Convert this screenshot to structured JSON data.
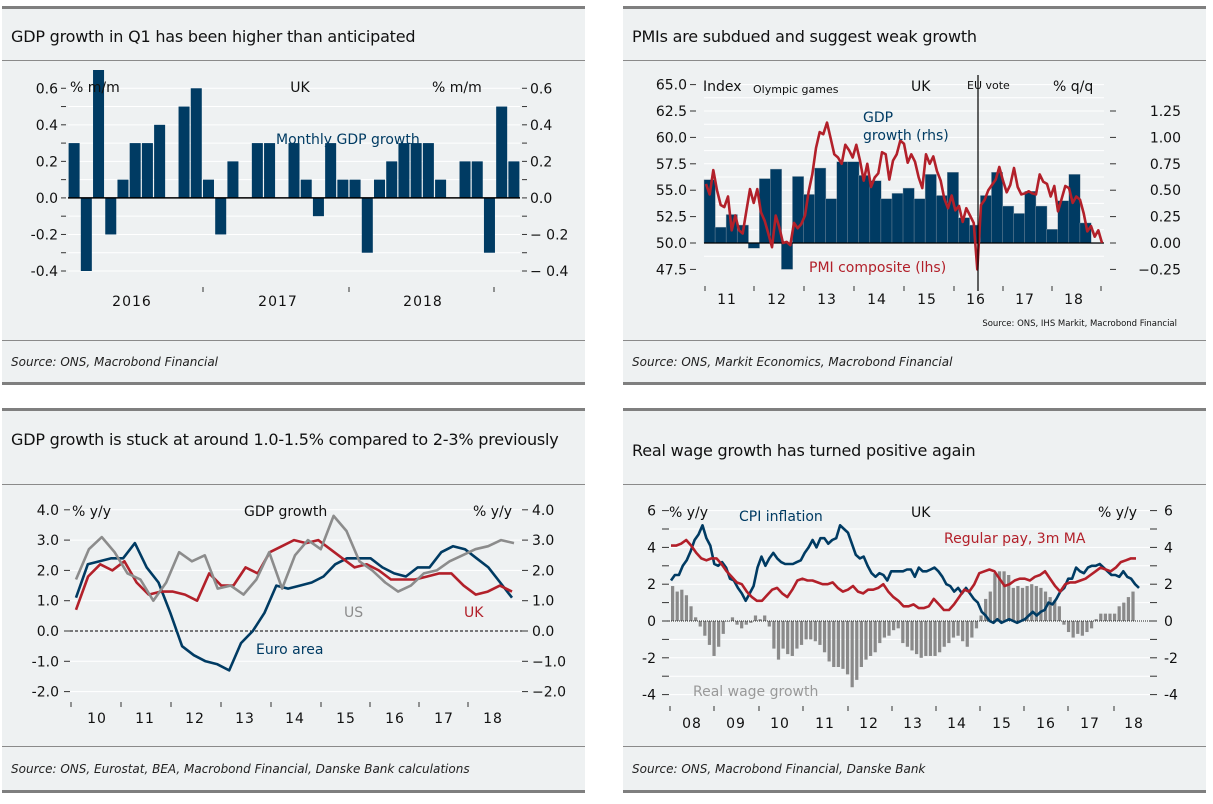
{
  "colors": {
    "navy": "#003b63",
    "red": "#b2202a",
    "gray": "#8c8c8c",
    "grid": "#ffffff"
  },
  "panels": [
    {
      "title": "GDP growth in Q1 has been higher than anticipated",
      "source": "Source: ONS, Macrobond Financial"
    },
    {
      "title": "PMIs are subdued and suggest weak growth",
      "source": "Source: ONS, Markit Economics, Macrobond Financial"
    },
    {
      "title": "GDP growth is stuck at around 1.0-1.5% compared to 2-3% previously",
      "source": "Source: ONS, Eurostat, BEA, Macrobond Financial, Danske Bank calculations"
    },
    {
      "title": "Real wage growth has turned positive again",
      "source": "Source: ONS, Macrobond Financial, Danske Bank"
    }
  ],
  "chart_data": [
    {
      "type": "bar",
      "title": "UK",
      "ylabel_left": "% m/m",
      "ylabel_right": "% m/m",
      "series_label": "Monthly GDP growth",
      "ylim": [
        -0.4,
        0.7
      ],
      "yticks": [
        -0.4,
        -0.2,
        0.0,
        0.2,
        0.4,
        0.6
      ],
      "ytick_labels": [
        "-0.4",
        "-0.2",
        "0.0",
        "0.2",
        "0.4",
        "0.6"
      ],
      "xtick_labels": [
        "2016",
        "2017",
        "2018"
      ],
      "values": [
        0.3,
        -0.4,
        0.7,
        -0.2,
        0.1,
        0.3,
        0.3,
        0.4,
        0.0,
        0.5,
        0.6,
        0.1,
        -0.2,
        0.2,
        0.0,
        0.3,
        0.3,
        0.0,
        0.3,
        0.1,
        -0.1,
        0.3,
        0.1,
        0.1,
        -0.3,
        0.1,
        0.2,
        0.3,
        0.3,
        0.3,
        0.1,
        0.0,
        0.2,
        0.2,
        -0.3,
        0.5,
        0.2
      ],
      "grid": true
    },
    {
      "type": "bar+line",
      "title": "UK",
      "ylabel_left": "Index",
      "ylabel_right": "% q/q",
      "left_ylim": [
        47.5,
        65.0
      ],
      "left_yticks": [
        "47.5",
        "50.0",
        "52.5",
        "55.0",
        "57.5",
        "60.0",
        "62.5",
        "65.0"
      ],
      "right_ylim": [
        -0.25,
        1.25
      ],
      "right_yticks": [
        "-0.25",
        "0.00",
        "0.25",
        "0.50",
        "0.75",
        "1.00",
        "1.25"
      ],
      "xtick_labels": [
        "11",
        "12",
        "13",
        "14",
        "15",
        "16",
        "17",
        "18"
      ],
      "annotations": [
        "Olympic games",
        "EU vote",
        "Source: ONS, IHS Markit, Macrobond Financial"
      ],
      "series": [
        {
          "name": "GDP growth (rhs)",
          "type": "bar",
          "axis": "right",
          "values": [
            0.6,
            0.15,
            0.27,
            0.17,
            -0.05,
            0.61,
            0.7,
            -0.25,
            0.63,
            0.46,
            0.71,
            0.42,
            0.77,
            0.77,
            0.64,
            0.59,
            0.42,
            0.47,
            0.52,
            0.42,
            0.65,
            0.45,
            0.67,
            0.24,
            0.17,
            0.45,
            0.67,
            0.35,
            0.28,
            0.49,
            0.35,
            0.13,
            0.4,
            0.65,
            0.19,
            0.0
          ]
        },
        {
          "name": "PMI composite (lhs)",
          "type": "line",
          "axis": "left",
          "values": [
            55.6,
            54.6,
            56.9,
            55.0,
            53.6,
            53.4,
            54.4,
            51.2,
            52.6,
            51.2,
            50.9,
            53.0,
            55.1,
            53.8,
            55.1,
            52.9,
            52.1,
            50.9,
            49.6,
            52.6,
            51.5,
            50.0,
            50.1,
            49.8,
            51.9,
            51.4,
            51.8,
            52.6,
            54.9,
            56.5,
            59.0,
            60.5,
            60.3,
            61.4,
            59.9,
            58.4,
            58.1,
            57.5,
            59.3,
            58.8,
            58.1,
            59.3,
            57.8,
            55.9,
            57.5,
            55.3,
            56.2,
            56.6,
            58.6,
            58.4,
            56.0,
            57.8,
            58.4,
            59.7,
            59.4,
            57.6,
            58.4,
            57.7,
            56.2,
            55.2,
            58.4,
            57.5,
            58.2,
            56.8,
            55.9,
            54.2,
            53.3,
            54.5,
            53.1,
            53.5,
            52.0,
            53.3,
            52.6,
            51.9,
            47.5,
            53.6,
            54.1,
            55.0,
            55.5,
            56.0,
            57.2,
            55.9,
            54.8,
            55.5,
            57.1,
            55.3,
            54.6,
            54.7,
            54.9,
            54.7,
            54.6,
            56.5,
            55.8,
            55.6,
            54.4,
            55.4,
            53.0,
            54.2,
            55.4,
            55.2,
            53.8,
            54.4,
            54.1,
            52.8,
            51.1,
            51.6,
            50.6,
            51.2,
            50.0
          ]
        }
      ],
      "grid": true
    },
    {
      "type": "line",
      "title": "GDP growth",
      "ylabel_left": "% y/y",
      "ylabel_right": "% y/y",
      "ylim": [
        -2.0,
        4.0
      ],
      "yticks": [
        "-2.0",
        "-1.0",
        "0.0",
        "1.0",
        "2.0",
        "3.0",
        "4.0"
      ],
      "xtick_labels": [
        "10",
        "11",
        "12",
        "13",
        "14",
        "15",
        "16",
        "17",
        "18"
      ],
      "series": [
        {
          "name": "Euro area",
          "color": "navy",
          "values": [
            1.1,
            2.2,
            2.3,
            2.4,
            2.4,
            2.9,
            2.1,
            1.6,
            0.6,
            -0.5,
            -0.8,
            -1.0,
            -1.1,
            -1.3,
            -0.4,
            0.0,
            0.6,
            1.5,
            1.4,
            1.5,
            1.6,
            1.8,
            2.2,
            2.4,
            2.4,
            2.4,
            2.1,
            1.9,
            1.8,
            2.1,
            2.1,
            2.6,
            2.8,
            2.7,
            2.4,
            2.1,
            1.6,
            1.1
          ]
        },
        {
          "name": "UK",
          "color": "red",
          "values": [
            0.7,
            1.8,
            2.2,
            2.0,
            2.3,
            1.6,
            1.2,
            1.3,
            1.3,
            1.2,
            1.0,
            1.9,
            1.5,
            1.5,
            2.1,
            1.9,
            2.6,
            2.8,
            3.0,
            2.9,
            3.0,
            2.7,
            2.4,
            2.1,
            2.2,
            2.0,
            1.7,
            1.7,
            1.7,
            1.8,
            1.9,
            1.9,
            1.5,
            1.2,
            1.3,
            1.5,
            1.3
          ]
        },
        {
          "name": "US",
          "color": "gray",
          "values": [
            1.7,
            2.7,
            3.1,
            2.6,
            1.9,
            1.7,
            1.0,
            1.6,
            2.6,
            2.3,
            2.5,
            1.4,
            1.5,
            1.2,
            1.7,
            2.6,
            1.4,
            2.5,
            3.0,
            2.7,
            3.8,
            3.3,
            2.3,
            2.0,
            1.6,
            1.3,
            1.5,
            1.9,
            2.0,
            2.3,
            2.5,
            2.7,
            2.8,
            3.0,
            2.9
          ]
        }
      ],
      "grid": true
    },
    {
      "type": "bar+line",
      "title": "UK",
      "ylabel_left": "% y/y",
      "ylabel_right": "% y/y",
      "ylim": [
        -4,
        6
      ],
      "yticks": [
        "-4",
        "-2",
        "0",
        "2",
        "4",
        "6"
      ],
      "xtick_labels": [
        "08",
        "09",
        "10",
        "11",
        "12",
        "13",
        "14",
        "15",
        "16",
        "17",
        "18"
      ],
      "series": [
        {
          "name": "CPI inflation",
          "type": "line",
          "color": "navy",
          "values": [
            2.2,
            2.5,
            2.5,
            3.0,
            3.3,
            3.8,
            4.4,
            4.7,
            5.2,
            4.5,
            4.1,
            3.1,
            3.0,
            3.2,
            2.9,
            2.3,
            2.2,
            1.8,
            1.5,
            1.1,
            1.5,
            1.9,
            2.9,
            3.5,
            3.0,
            3.4,
            3.7,
            3.4,
            3.2,
            3.1,
            3.1,
            3.1,
            3.2,
            3.3,
            3.7,
            4.0,
            4.4,
            4.0,
            4.5,
            4.5,
            4.2,
            4.4,
            4.5,
            5.2,
            5.0,
            4.8,
            4.2,
            3.6,
            3.4,
            3.5,
            3.0,
            2.6,
            2.4,
            2.6,
            2.5,
            2.2,
            2.7,
            2.7,
            2.7,
            2.7,
            2.8,
            2.8,
            2.4,
            2.9,
            2.7,
            2.7,
            2.8,
            2.9,
            2.7,
            2.4,
            2.0,
            1.9,
            1.6,
            1.8,
            1.5,
            1.8,
            1.5,
            1.2,
            1.0,
            0.5,
            0.3,
            0.0,
            -0.1,
            0.1,
            -0.1,
            0.0,
            0.1,
            0.0,
            -0.1,
            0.0,
            0.1,
            0.3,
            0.5,
            0.3,
            0.5,
            0.6,
            1.0,
            0.9,
            1.2,
            1.6,
            1.8,
            2.3,
            2.3,
            2.9,
            2.7,
            2.6,
            2.9,
            3.0,
            3.0,
            3.1,
            2.9,
            2.7,
            2.5,
            2.5,
            2.4,
            2.7,
            2.4,
            2.3,
            2.0,
            1.8
          ]
        },
        {
          "name": "Regular pay, 3m MA",
          "type": "line",
          "color": "red",
          "values": [
            4.1,
            4.1,
            4.2,
            4.4,
            4.1,
            3.7,
            3.4,
            3.3,
            3.4,
            3.4,
            3.1,
            2.7,
            2.4,
            2.1,
            2.0,
            1.6,
            1.3,
            1.1,
            1.1,
            1.4,
            1.7,
            1.8,
            1.5,
            1.3,
            1.7,
            2.2,
            2.3,
            2.2,
            2.2,
            2.1,
            2.0,
            2.0,
            2.1,
            1.8,
            1.6,
            1.7,
            1.9,
            1.6,
            1.5,
            1.7,
            1.7,
            1.8,
            2.0,
            1.6,
            1.3,
            1.1,
            0.8,
            0.8,
            0.9,
            0.7,
            0.7,
            0.8,
            1.2,
            0.9,
            0.6,
            0.6,
            0.9,
            1.3,
            1.7,
            1.6,
            2.0,
            2.6,
            2.7,
            2.8,
            2.7,
            2.3,
            1.9,
            2.0,
            2.2,
            2.3,
            2.3,
            2.2,
            2.4,
            2.5,
            2.7,
            2.3,
            1.9,
            1.6,
            2.0,
            2.1,
            2.1,
            2.2,
            2.3,
            2.5,
            2.7,
            2.9,
            2.8,
            2.7,
            2.9,
            3.2,
            3.3,
            3.4,
            3.4
          ]
        },
        {
          "name": "Real wage growth",
          "type": "bar",
          "color": "gray",
          "values": [
            1.9,
            1.6,
            1.7,
            1.4,
            0.8,
            0.2,
            -0.3,
            -0.8,
            -1.3,
            -1.9,
            -1.4,
            -0.7,
            0.0,
            0.2,
            -0.2,
            -0.4,
            -0.2,
            -0.1,
            0.3,
            0.1,
            0.3,
            -0.3,
            -1.5,
            -2.1,
            -1.5,
            -1.8,
            -1.9,
            -1.5,
            -1.3,
            -1.0,
            -1.0,
            -1.1,
            -1.3,
            -1.7,
            -2.2,
            -2.5,
            -2.5,
            -2.6,
            -2.9,
            -3.6,
            -3.2,
            -2.5,
            -2.1,
            -1.9,
            -1.7,
            -1.2,
            -0.9,
            -0.8,
            -0.5,
            -0.4,
            -1.2,
            -1.4,
            -1.6,
            -1.8,
            -2.0,
            -1.9,
            -1.9,
            -1.9,
            -1.7,
            -1.4,
            -1.2,
            -0.9,
            -0.8,
            -1.1,
            -1.4,
            -0.9,
            -0.4,
            0.3,
            1.2,
            1.6,
            2.6,
            2.7,
            2.7,
            2.5,
            1.8,
            1.9,
            1.8,
            1.9,
            2.0,
            1.9,
            1.8,
            1.6,
            1.3,
            1.1,
            0.8,
            -0.2,
            -0.6,
            -0.9,
            -0.7,
            -0.8,
            -0.6,
            -0.4,
            0.1,
            0.4,
            0.4,
            0.4,
            0.4,
            0.8,
            1.0,
            1.3,
            1.6
          ]
        }
      ],
      "grid": true
    }
  ]
}
